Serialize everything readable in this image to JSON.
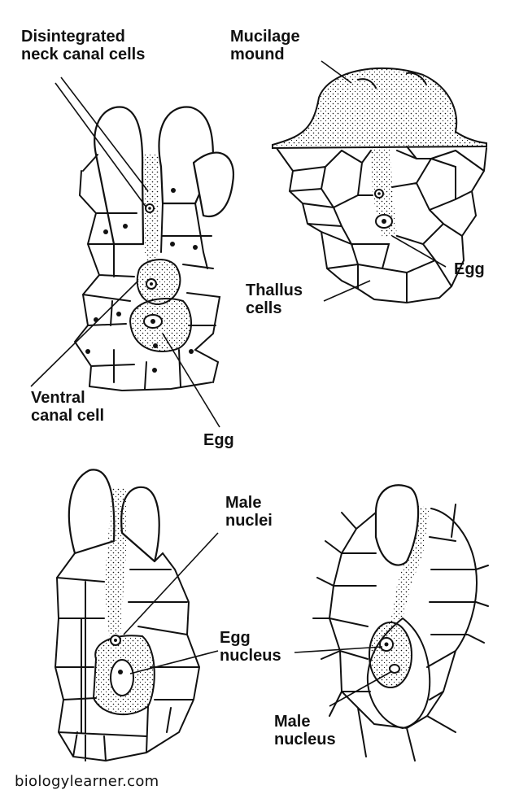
{
  "labels": {
    "disintegrated": "Disintegrated\nneck canal cells",
    "mucilage": "Mucilage\nmound",
    "egg_top_right": "Egg",
    "thallus": "Thallus\ncells",
    "ventral": "Ventral\ncanal cell",
    "egg_top_left": "Egg",
    "male_nuclei": "Male\nnuclei",
    "egg_nucleus": "Egg\nnucleus",
    "male_nucleus": "Male\nnucleus"
  },
  "watermark": "biologylearner.com",
  "colors": {
    "line": "#111111",
    "background": "#ffffff"
  }
}
